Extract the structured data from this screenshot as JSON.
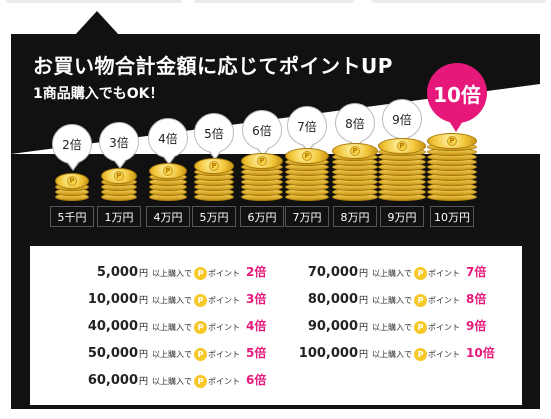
{
  "heading": "お買い物合計金額に応じてポイントUP",
  "subheading": "1商品購入でもOK！",
  "coin_tiers": [
    {
      "amount": "5千円",
      "multiplier": "2倍",
      "coins": 2
    },
    {
      "amount": "1万円",
      "multiplier": "3倍",
      "coins": 3
    },
    {
      "amount": "4万円",
      "multiplier": "4倍",
      "coins": 4
    },
    {
      "amount": "5万円",
      "multiplier": "5倍",
      "coins": 5
    },
    {
      "amount": "6万円",
      "multiplier": "6倍",
      "coins": 6
    },
    {
      "amount": "7万円",
      "multiplier": "7倍",
      "coins": 7
    },
    {
      "amount": "8万円",
      "multiplier": "8倍",
      "coins": 8
    },
    {
      "amount": "9万円",
      "multiplier": "9倍",
      "coins": 9
    },
    {
      "amount": "10万円",
      "multiplier": "10倍",
      "coins": 10
    }
  ],
  "badge_symbol": "P",
  "rates": [
    {
      "amount": "5,000",
      "unit": "円",
      "condition": "以上購入で",
      "point": "ポイント",
      "multiplier": "2倍"
    },
    {
      "amount": "10,000",
      "unit": "円",
      "condition": "以上購入で",
      "point": "ポイント",
      "multiplier": "3倍"
    },
    {
      "amount": "40,000",
      "unit": "円",
      "condition": "以上購入で",
      "point": "ポイント",
      "multiplier": "4倍"
    },
    {
      "amount": "50,000",
      "unit": "円",
      "condition": "以上購入で",
      "point": "ポイント",
      "multiplier": "5倍"
    },
    {
      "amount": "60,000",
      "unit": "円",
      "condition": "以上購入で",
      "point": "ポイント",
      "multiplier": "6倍"
    },
    {
      "amount": "70,000",
      "unit": "円",
      "condition": "以上購入で",
      "point": "ポイント",
      "multiplier": "7倍"
    },
    {
      "amount": "80,000",
      "unit": "円",
      "condition": "以上購入で",
      "point": "ポイント",
      "multiplier": "8倍"
    },
    {
      "amount": "90,000",
      "unit": "円",
      "condition": "以上購入で",
      "point": "ポイント",
      "multiplier": "9倍"
    },
    {
      "amount": "100,000",
      "unit": "円",
      "condition": "以上購入で",
      "point": "ポイント",
      "multiplier": "10倍"
    }
  ],
  "colors": {
    "panel": "#111111",
    "accent": "#e6197a",
    "coin": "#f2c63a"
  }
}
